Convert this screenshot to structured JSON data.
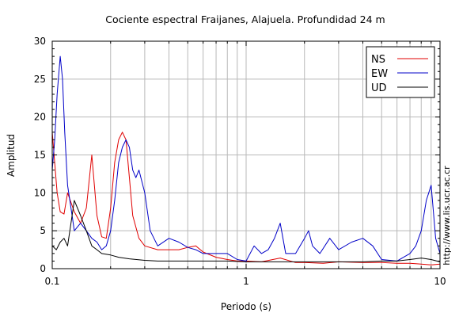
{
  "chart_data": {
    "type": "line",
    "title": "Cociente espectral Fraijanes, Alajuela. Profundidad 24 m",
    "xlabel": "Periodo (s)",
    "ylabel": "Amplitud",
    "xscale": "log",
    "xlim": [
      0.1,
      10
    ],
    "ylim": [
      0,
      30
    ],
    "xticks": [
      {
        "value": 0.1,
        "label": "0.1"
      },
      {
        "value": 1,
        "label": "1"
      },
      {
        "value": 10,
        "label": "10"
      }
    ],
    "yticks": [
      0,
      5,
      10,
      15,
      20,
      25,
      30
    ],
    "grid": true,
    "legend": "top-right",
    "watermark": "http://www.lis.ucr.ac.cr",
    "series": [
      {
        "name": "NS",
        "color": "#e00000",
        "x": [
          0.1,
          0.103,
          0.106,
          0.11,
          0.115,
          0.12,
          0.13,
          0.14,
          0.15,
          0.16,
          0.17,
          0.18,
          0.19,
          0.2,
          0.21,
          0.22,
          0.23,
          0.24,
          0.25,
          0.26,
          0.28,
          0.3,
          0.35,
          0.4,
          0.45,
          0.5,
          0.55,
          0.6,
          0.7,
          0.8,
          0.9,
          1,
          1.2,
          1.5,
          1.8,
          2,
          2.5,
          3,
          4,
          5,
          6,
          7,
          8,
          9,
          10
        ],
        "y": [
          18,
          14,
          10,
          7.5,
          7.2,
          10,
          7.5,
          6,
          8,
          15,
          7,
          4.2,
          4,
          8,
          14,
          17,
          18,
          17,
          12,
          7,
          4,
          3,
          2.5,
          2.5,
          2.5,
          2.8,
          3,
          2.2,
          1.5,
          1.2,
          1,
          1,
          0.9,
          1.4,
          0.8,
          0.8,
          0.7,
          0.9,
          0.8,
          0.8,
          0.7,
          0.7,
          0.6,
          0.5,
          0.6
        ]
      },
      {
        "name": "EW",
        "color": "#0000c8",
        "x": [
          0.1,
          0.103,
          0.106,
          0.11,
          0.113,
          0.116,
          0.12,
          0.125,
          0.13,
          0.14,
          0.15,
          0.16,
          0.17,
          0.18,
          0.19,
          0.2,
          0.21,
          0.22,
          0.23,
          0.24,
          0.25,
          0.26,
          0.27,
          0.28,
          0.3,
          0.32,
          0.35,
          0.4,
          0.45,
          0.5,
          0.55,
          0.6,
          0.7,
          0.8,
          0.9,
          1,
          1.1,
          1.2,
          1.3,
          1.4,
          1.5,
          1.6,
          1.8,
          2,
          2.1,
          2.2,
          2.4,
          2.7,
          3,
          3.5,
          4,
          4.5,
          5,
          6,
          7,
          7.5,
          8,
          8.5,
          9,
          9.5,
          10
        ],
        "y": [
          13,
          17,
          23,
          28,
          25,
          18,
          11,
          8,
          5,
          6,
          5,
          4,
          3.5,
          2.5,
          3,
          5,
          9,
          14,
          16,
          17,
          16,
          13,
          12,
          13,
          10,
          5,
          3,
          4,
          3.5,
          2.8,
          2.5,
          2,
          2,
          2,
          1.2,
          1,
          3,
          2,
          2.5,
          4,
          6,
          2,
          2,
          4,
          5,
          3,
          2,
          4,
          2.5,
          3.5,
          4,
          3,
          1.2,
          1,
          2,
          3,
          5,
          9,
          11,
          4,
          2
        ]
      },
      {
        "name": "UD",
        "color": "#000000",
        "x": [
          0.1,
          0.105,
          0.11,
          0.115,
          0.12,
          0.125,
          0.13,
          0.14,
          0.15,
          0.16,
          0.17,
          0.18,
          0.2,
          0.22,
          0.25,
          0.3,
          0.35,
          0.4,
          0.5,
          0.6,
          0.7,
          0.8,
          1,
          1.2,
          1.5,
          2,
          2.5,
          3,
          4,
          5,
          6,
          7,
          8,
          9,
          10
        ],
        "y": [
          3,
          2.5,
          3.5,
          4,
          3,
          6,
          9,
          7,
          5,
          3,
          2.5,
          2,
          1.8,
          1.5,
          1.3,
          1.1,
          1,
          1,
          1,
          1,
          1,
          1,
          0.9,
          0.9,
          0.9,
          0.9,
          0.9,
          0.9,
          0.9,
          1,
          1,
          1.2,
          1.4,
          1.2,
          0.9
        ]
      }
    ]
  }
}
